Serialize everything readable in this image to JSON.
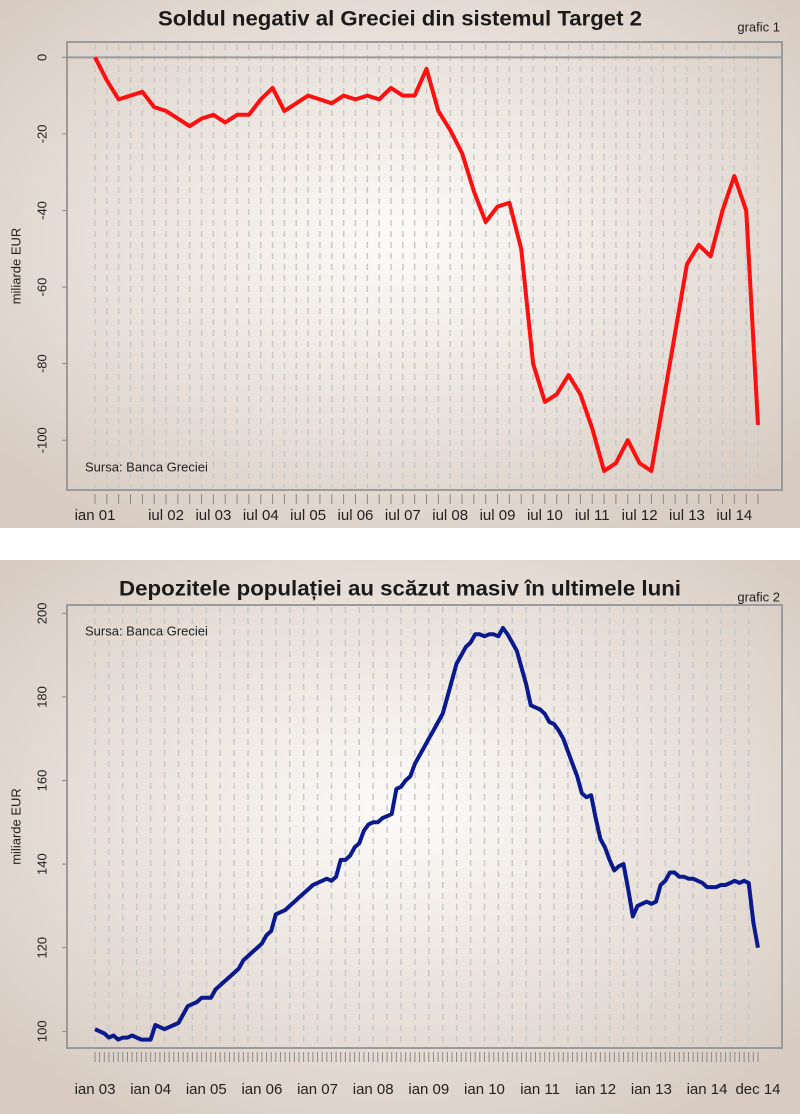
{
  "chart_data": [
    {
      "type": "line",
      "title": "Soldul negativ al Greciei din sistemul Target 2",
      "label": "grafic 1",
      "y_label": "miliarde EUR",
      "source": "Sursa: Banca Greciei",
      "categories": [
        "ian 01",
        null,
        null,
        null,
        null,
        null,
        "iul 02",
        null,
        null,
        null,
        "iul 03",
        null,
        null,
        null,
        "iul 04",
        null,
        null,
        null,
        "iul 05",
        null,
        null,
        null,
        "iul 06",
        null,
        null,
        null,
        "iul 07",
        null,
        null,
        null,
        "iul 08",
        null,
        null,
        null,
        "iul 09",
        null,
        null,
        null,
        "iul 10",
        null,
        null,
        null,
        "iul 11",
        null,
        null,
        null,
        "iul 12",
        null,
        null,
        null,
        "iul 13",
        null,
        null,
        null,
        "iul 14",
        null,
        null
      ],
      "values": [
        0,
        -6,
        -11,
        -10,
        -9,
        -13,
        -14,
        -16,
        -18,
        -16,
        -15,
        -17,
        -15,
        -15,
        -11,
        -8,
        -14,
        -12,
        -10,
        -11,
        -12,
        -10,
        -11,
        -10,
        -11,
        -8,
        -10,
        -10,
        -3,
        -14,
        -19,
        -25,
        -35,
        -43,
        -39,
        -38,
        -50,
        -80,
        -90,
        -88,
        -83,
        -88,
        -97,
        -108,
        -106,
        -100,
        -106,
        -108,
        -90,
        -72,
        -54,
        -49,
        -52,
        -40,
        -31,
        -40,
        -96
      ],
      "color": "#ff1010",
      "ylim": [
        -113,
        4
      ],
      "yticks": [
        -100,
        -80,
        -60,
        -40,
        -20,
        0
      ],
      "grid": "x"
    },
    {
      "type": "line",
      "title": "Depozitele populației au scăzut masiv în ultimele luni",
      "label": "grafic 2",
      "y_label": "miliarde EUR",
      "source": "Sursa: Banca Greciei",
      "categories": [
        "ian 03",
        null,
        null,
        null,
        null,
        null,
        null,
        null,
        null,
        null,
        null,
        null,
        "ian 04",
        null,
        null,
        null,
        null,
        null,
        null,
        null,
        null,
        null,
        null,
        null,
        "ian 05",
        null,
        null,
        null,
        null,
        null,
        null,
        null,
        null,
        null,
        null,
        null,
        "ian 06",
        null,
        null,
        null,
        null,
        null,
        null,
        null,
        null,
        null,
        null,
        null,
        "ian 07",
        null,
        null,
        null,
        null,
        null,
        null,
        null,
        null,
        null,
        null,
        null,
        "ian 08",
        null,
        null,
        null,
        null,
        null,
        null,
        null,
        null,
        null,
        null,
        null,
        "ian 09",
        null,
        null,
        null,
        null,
        null,
        null,
        null,
        null,
        null,
        null,
        null,
        "ian 10",
        null,
        null,
        null,
        null,
        null,
        null,
        null,
        null,
        null,
        null,
        null,
        "ian 11",
        null,
        null,
        null,
        null,
        null,
        null,
        null,
        null,
        null,
        null,
        null,
        "ian 12",
        null,
        null,
        null,
        null,
        null,
        null,
        null,
        null,
        null,
        null,
        null,
        "ian 13",
        null,
        null,
        null,
        null,
        null,
        null,
        null,
        null,
        null,
        null,
        null,
        "ian 14",
        null,
        null,
        null,
        null,
        null,
        null,
        null,
        null,
        null,
        null,
        "dec 14"
      ],
      "values": [
        100.5,
        100,
        99.5,
        98.5,
        99,
        98,
        98.5,
        98.5,
        99,
        98.5,
        98,
        98,
        98,
        101.5,
        101,
        100.5,
        101,
        101.5,
        102,
        104,
        106,
        106.5,
        107,
        108,
        108,
        108,
        110,
        111,
        112,
        113,
        114,
        115,
        117,
        118,
        119,
        120,
        121,
        123,
        124,
        128,
        128.5,
        129,
        130,
        131,
        132,
        133,
        134,
        135,
        135.5,
        136,
        136.5,
        136,
        137,
        141,
        141,
        142,
        144,
        145,
        148,
        149.5,
        150,
        150,
        151,
        151.5,
        152,
        158,
        158.5,
        160,
        161,
        164,
        166,
        168,
        170,
        172,
        174,
        176,
        180,
        184,
        188,
        190,
        192,
        193,
        195,
        195,
        194.5,
        195,
        195,
        194.5,
        196.5,
        195,
        193,
        191,
        187,
        183,
        178,
        177.5,
        177,
        176,
        174,
        173.5,
        172,
        170,
        167,
        164,
        161,
        157,
        156,
        156.5,
        151,
        146,
        144,
        141,
        138.5,
        139.5,
        140,
        134,
        127.5,
        130,
        130.5,
        131,
        130.5,
        131,
        135,
        136,
        138,
        138,
        137,
        137,
        136.5,
        136.5,
        136,
        135.5,
        134.5,
        134.5,
        134.5,
        135,
        135,
        135.5,
        136,
        135.5,
        136,
        135.5,
        126,
        120
      ],
      "color": "#0a1a8c",
      "ylim": [
        96,
        202
      ],
      "yticks": [
        100,
        120,
        140,
        160,
        180,
        200
      ],
      "grid": "x"
    }
  ]
}
